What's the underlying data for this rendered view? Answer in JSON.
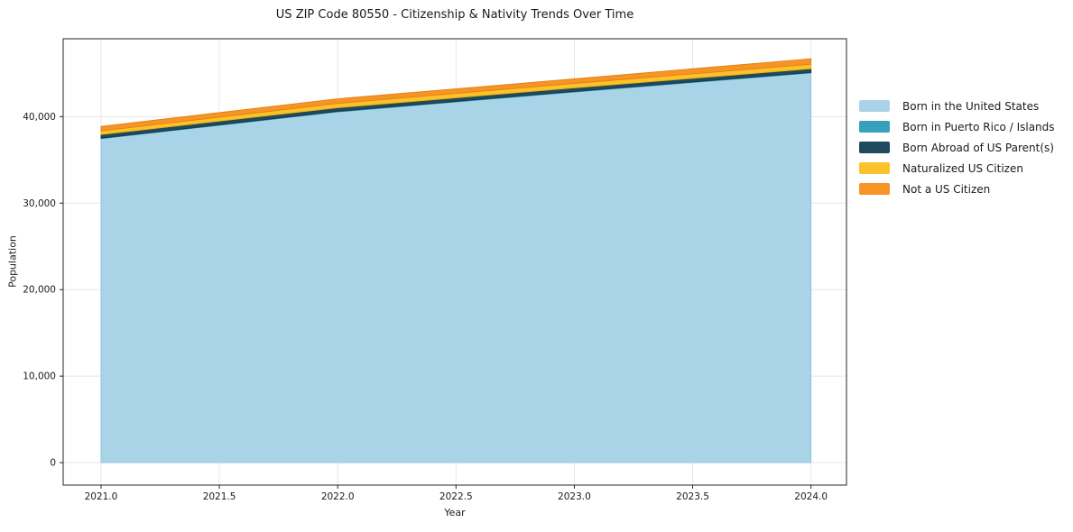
{
  "chart_data": {
    "type": "area",
    "stacked": true,
    "title": "US ZIP Code 80550 - Citizenship & Nativity Trends Over Time",
    "xlabel": "Year",
    "ylabel": "Population",
    "x": [
      2021,
      2022,
      2023,
      2024
    ],
    "series": [
      {
        "name": "Born in the United States",
        "color": "#a9d4e8",
        "edge": "#8fc4de",
        "values": [
          37450,
          40550,
          42850,
          45050
        ]
      },
      {
        "name": "Born in Puerto Rico / Islands",
        "color": "#35a1bc",
        "edge": "#2e93ad",
        "values": [
          60,
          60,
          60,
          60
        ]
      },
      {
        "name": "Born Abroad of US Parent(s)",
        "color": "#1f4a5d",
        "edge": "#16394a",
        "values": [
          420,
          420,
          420,
          430
        ]
      },
      {
        "name": "Naturalized US Citizen",
        "color": "#fbc22c",
        "edge": "#eead0f",
        "values": [
          420,
          500,
          510,
          520
        ]
      },
      {
        "name": "Not a US Citizen",
        "color": "#f79327",
        "edge": "#e0820e",
        "values": [
          520,
          530,
          530,
          630
        ]
      }
    ],
    "xlim": [
      2020.84,
      2024.15
    ],
    "ylim": [
      -2600,
      49000
    ],
    "xticks": [
      2021.0,
      2021.5,
      2022.0,
      2022.5,
      2023.0,
      2023.5,
      2024.0
    ],
    "xtick_labels": [
      "2021.0",
      "2021.5",
      "2022.0",
      "2022.5",
      "2023.0",
      "2023.5",
      "2024.0"
    ],
    "yticks": [
      0,
      10000,
      20000,
      30000,
      40000
    ],
    "ytick_labels": [
      "0",
      "10,000",
      "20,000",
      "30,000",
      "40,000"
    ],
    "grid": true,
    "legend_position": "right-outside",
    "colors": {
      "grid": "#e7e7e7",
      "spine": "#262626",
      "tick": "#262626",
      "text": "#1a1a1a",
      "background": "#ffffff"
    }
  }
}
